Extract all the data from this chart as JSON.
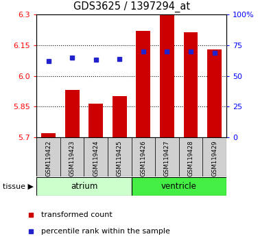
{
  "title": "GDS3625 / 1397294_at",
  "samples": [
    "GSM119422",
    "GSM119423",
    "GSM119424",
    "GSM119425",
    "GSM119426",
    "GSM119427",
    "GSM119428",
    "GSM119429"
  ],
  "red_values": [
    5.72,
    5.93,
    5.865,
    5.9,
    6.22,
    6.3,
    6.215,
    6.13
  ],
  "blue_values_pct": [
    62,
    65,
    63,
    64,
    70,
    70,
    70,
    69
  ],
  "y_min": 5.7,
  "y_max": 6.3,
  "y_ticks": [
    5.7,
    5.85,
    6.0,
    6.15,
    6.3
  ],
  "y2_ticks": [
    0,
    25,
    50,
    75,
    100
  ],
  "y2_labels": [
    "0",
    "25",
    "50",
    "75",
    "100%"
  ],
  "bar_bottom": 5.7,
  "red_color": "#cc0000",
  "blue_color": "#2222cc",
  "tissue_labels": [
    "atrium",
    "ventricle"
  ],
  "atrium_color": "#ccffcc",
  "ventricle_color": "#44ee44",
  "bg_color": "#ffffff",
  "legend_red_label": "transformed count",
  "legend_blue_label": "percentile rank within the sample",
  "bar_width": 0.6
}
